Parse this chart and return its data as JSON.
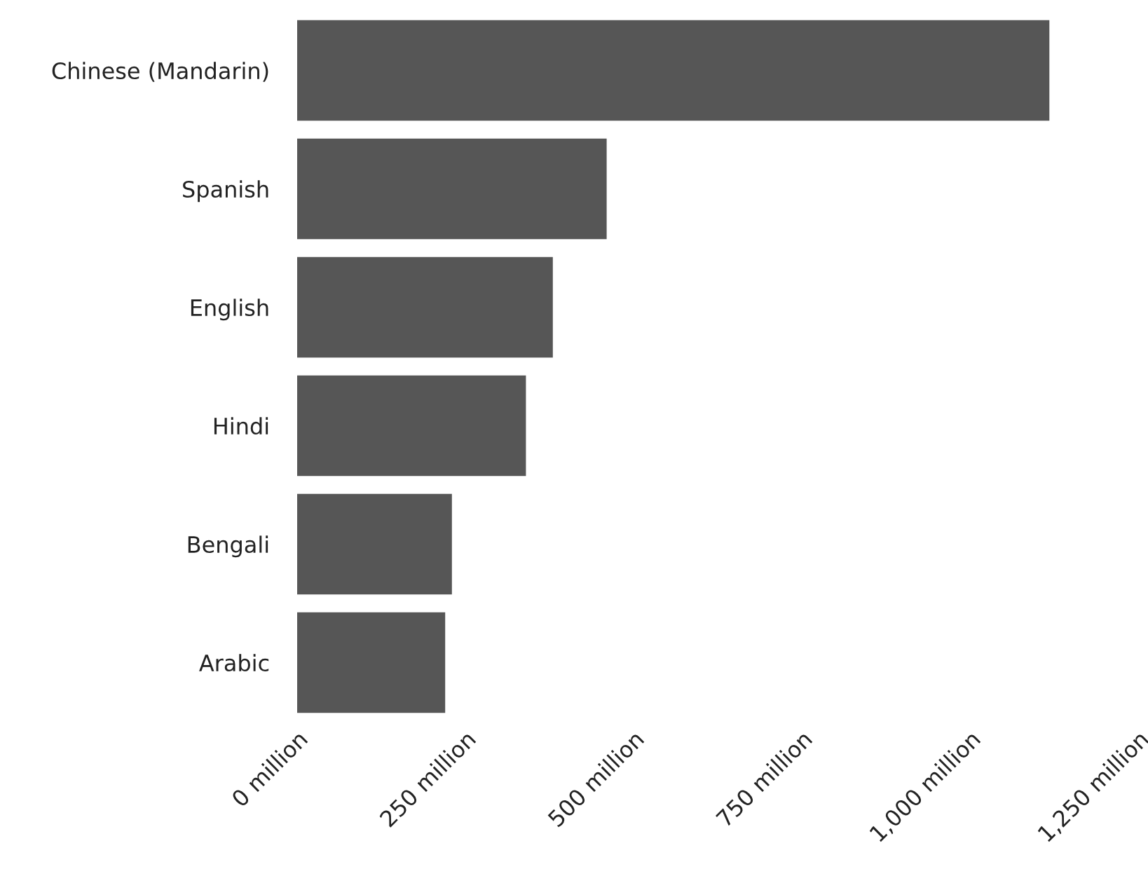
{
  "chart_data": {
    "type": "bar",
    "orientation": "horizontal",
    "categories": [
      "Chinese (Mandarin)",
      "Spanish",
      "English",
      "Hindi",
      "Bengali",
      "Arabic"
    ],
    "values": [
      1118,
      460,
      380,
      340,
      230,
      220
    ],
    "color": "#565656",
    "xlim": [
      0,
      1250
    ],
    "xticks": [
      {
        "value": 0,
        "label": "0 million"
      },
      {
        "value": 250,
        "label": "250 million"
      },
      {
        "value": 500,
        "label": "500 million"
      },
      {
        "value": 750,
        "label": "750 million"
      },
      {
        "value": 1000,
        "label": "1,000 million"
      },
      {
        "value": 1250,
        "label": "1,250 million"
      }
    ],
    "grid": false,
    "legend": false
  }
}
